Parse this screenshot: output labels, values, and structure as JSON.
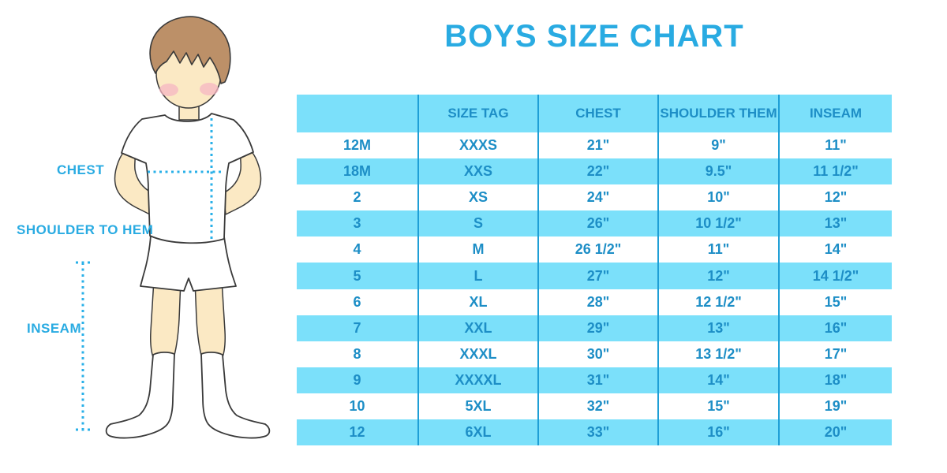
{
  "title": "BOYS SIZE CHART",
  "figure": {
    "labels": {
      "chest": "CHEST",
      "shoulder": "SHOULDER TO HEM",
      "inseam": "INSEAM"
    }
  },
  "colors": {
    "accent": "#29ABE2",
    "stripe": "#7BE0FA",
    "line": "#1F9FD6",
    "tabletext": "#1D8EC6",
    "dotted": "#2AB0E8",
    "skin": "#FBE9C4",
    "hair": "#BC9068",
    "cheek": "#F5B5C3",
    "outline": "#3A3A3A"
  },
  "chart_data": {
    "type": "table",
    "title": "BOYS SIZE CHART",
    "columns": [
      "",
      "SIZE TAG",
      "CHEST",
      "SHOULDER THEM",
      "INSEAM"
    ],
    "rows": [
      [
        "12M",
        "XXXS",
        "21\"",
        "9\"",
        "11\""
      ],
      [
        "18M",
        "XXS",
        "22\"",
        "9.5\"",
        "11 1/2\""
      ],
      [
        "2",
        "XS",
        "24\"",
        "10\"",
        "12\""
      ],
      [
        "3",
        "S",
        "26\"",
        "10 1/2\"",
        "13\""
      ],
      [
        "4",
        "M",
        "26 1/2\"",
        "11\"",
        "14\""
      ],
      [
        "5",
        "L",
        "27\"",
        "12\"",
        "14 1/2\""
      ],
      [
        "6",
        "XL",
        "28\"",
        "12 1/2\"",
        "15\""
      ],
      [
        "7",
        "XXL",
        "29\"",
        "13\"",
        "16\""
      ],
      [
        "8",
        "XXXL",
        "30\"",
        "13 1/2\"",
        "17\""
      ],
      [
        "9",
        "XXXXL",
        "31\"",
        "14\"",
        "18\""
      ],
      [
        "10",
        "5XL",
        "32\"",
        "15\"",
        "19\""
      ],
      [
        "12",
        "6XL",
        "33\"",
        "16\"",
        "20\""
      ]
    ]
  }
}
